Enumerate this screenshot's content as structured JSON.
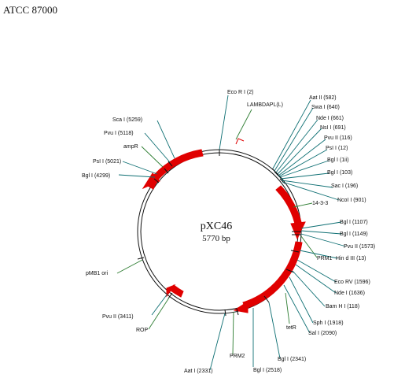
{
  "header": {
    "title": "ATCC 87000"
  },
  "plasmid": {
    "name": "pXC46",
    "size": "5770 bp"
  },
  "colors": {
    "feature": "#e00000",
    "teal_line": "#0e6f73",
    "green_line": "#2e7d32",
    "backbone": "#111111"
  },
  "labels": {
    "ecor1": "Eco R I (2)",
    "lambda_pl": "LAMBDAPL(L)",
    "aat2": "Aat II (582)",
    "swa1": "Swa I (640)",
    "nde1_a": "Nde I (661)",
    "nsi1": "NsI I (691)",
    "pvu2_a": "Pvu II (116)",
    "pst1_a": "PsI I (12)",
    "bgl1_a": "Bgl I (1ii)",
    "bgl1_b": "Bgl I (103)",
    "sac1": "Sac I (196)",
    "nco1": "NcoI I (901)",
    "gene_1433": "14-3-3",
    "bgl1_c": "Bgl I (1107)",
    "bgl1_d": "Bgl I (1149)",
    "pvu2_b": "Pvu II (1573)",
    "prm1": "PRM1",
    "hind3": "Hin d III (13)",
    "ecorv": "Eco RV (1596)",
    "nde1_b": "Nde I (1636)",
    "bamh1": "Bam H I (118)",
    "sph1": "Sph I (1918)",
    "sal1": "Sal I (2090)",
    "bgl1_e": "Bgl I (2341)",
    "bgl1_f": "Bgl I (2518)",
    "teta": "tetR",
    "prm2": "PRM2",
    "aat2_b": "Aat I (2331)",
    "rop": "ROP",
    "pvu2_c": "Pvu II (3411)",
    "pmb1": "pMB1 ori",
    "bgl1_g": "Bgl I (4299)",
    "pst1_b": "PsI I (5021)",
    "ampr": "ampR",
    "pvu1": "Pvu I (5118)",
    "sca1": "Sca I (5259)"
  }
}
